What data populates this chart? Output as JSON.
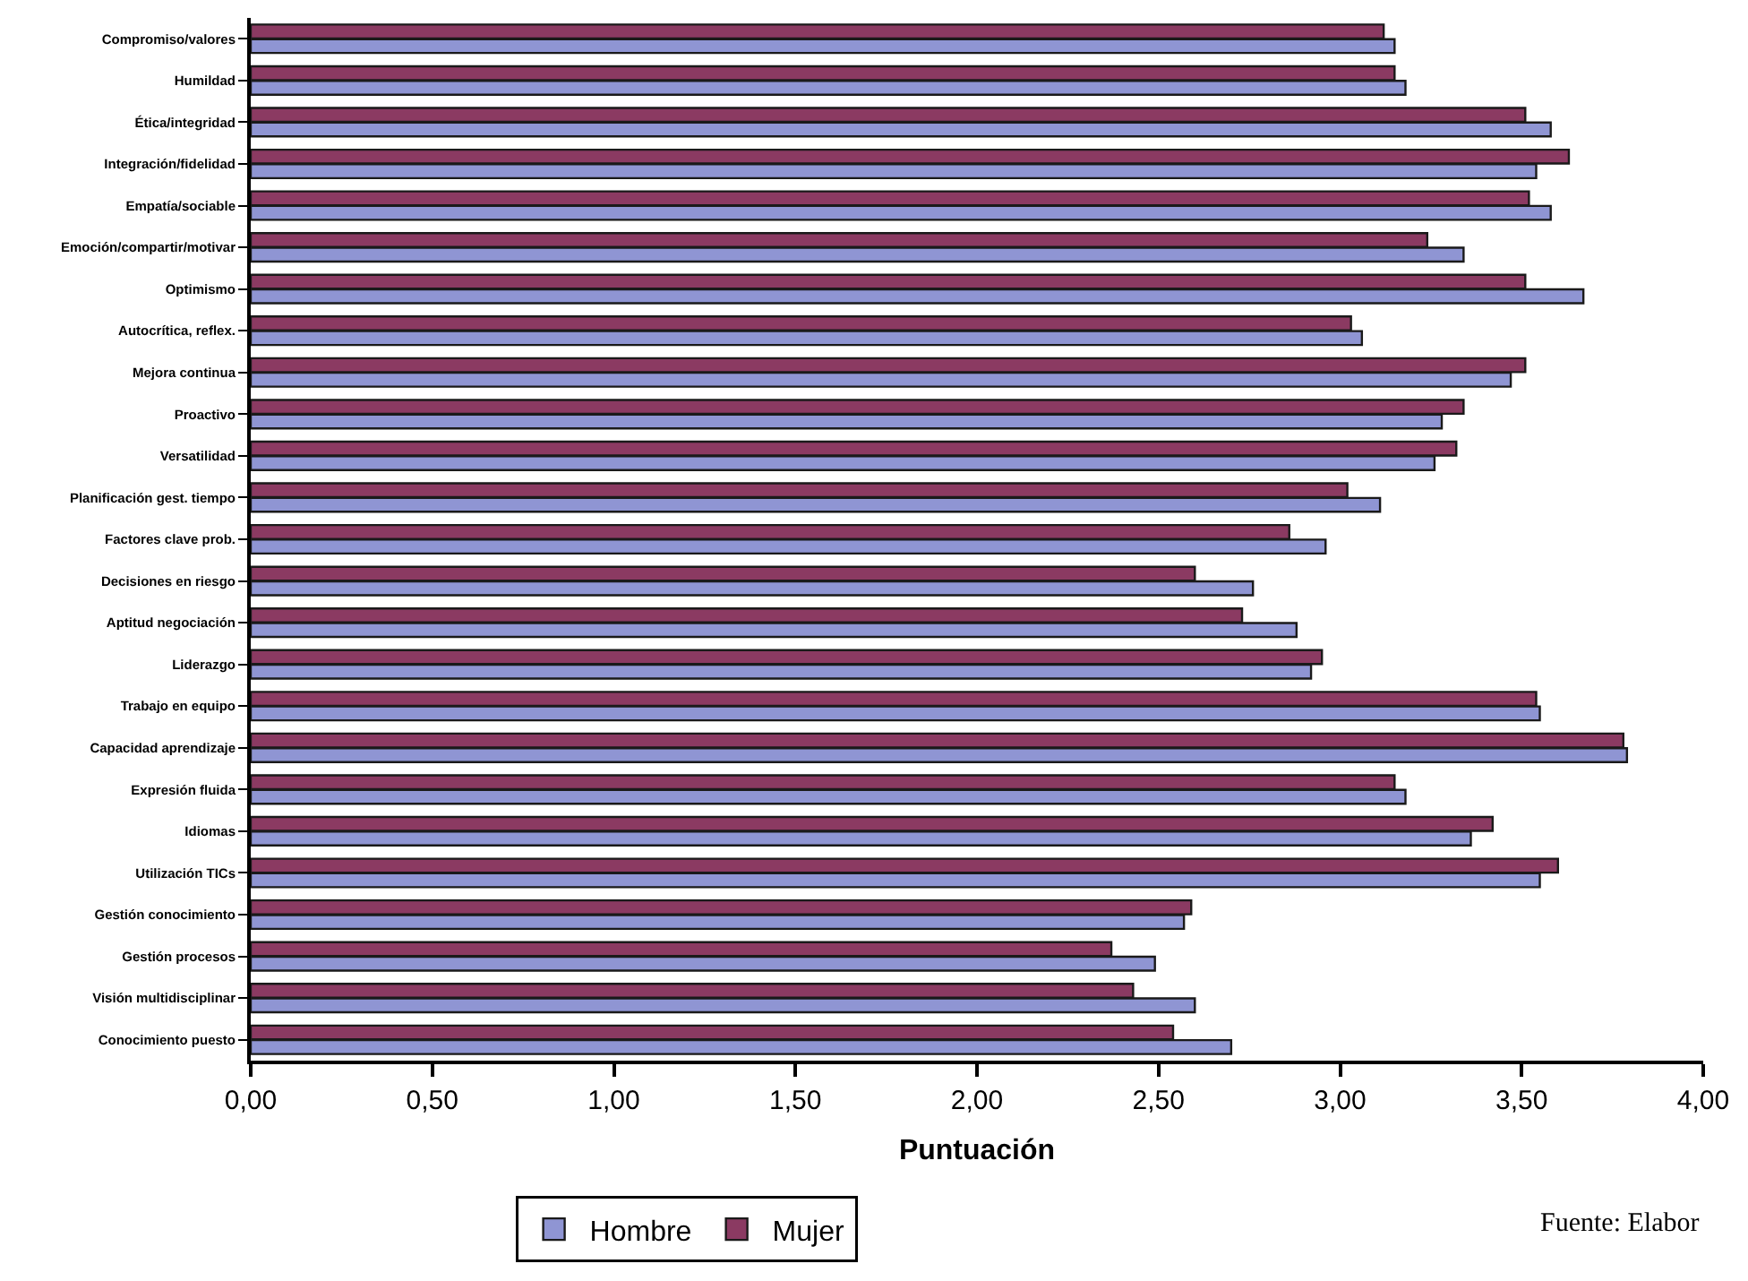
{
  "chart_data": {
    "type": "bar",
    "orientation": "horizontal",
    "xlabel": "Puntuación",
    "categories": [
      "Compromiso/valores",
      "Humildad",
      "Ética/integridad",
      "Integración/fidelidad",
      "Empatía/sociable",
      "Emoción/compartir/motivar",
      "Optimismo",
      "Autocrítica, reflex.",
      "Mejora continua",
      "Proactivo",
      "Versatilidad",
      "Planificación gest. tiempo",
      "Factores clave prob.",
      "Decisiones en riesgo",
      "Aptitud negociación",
      "Liderazgo",
      "Trabajo en equipo",
      "Capacidad aprendizaje",
      "Expresión fluida",
      "Idiomas",
      "Utilización TICs",
      "Gestión conocimiento",
      "Gestión procesos",
      "Visión multidisciplinar",
      "Conocimiento puesto"
    ],
    "series": [
      {
        "name": "Hombre",
        "color": "#8f95d3",
        "values": [
          3.15,
          3.18,
          3.58,
          3.54,
          3.58,
          3.34,
          3.67,
          3.06,
          3.47,
          3.28,
          3.26,
          3.11,
          2.96,
          2.76,
          2.88,
          2.92,
          3.55,
          3.79,
          3.18,
          3.36,
          3.55,
          2.57,
          2.49,
          2.6,
          2.7
        ]
      },
      {
        "name": "Mujer",
        "color": "#8b3a62",
        "values": [
          3.12,
          3.15,
          3.51,
          3.63,
          3.52,
          3.24,
          3.51,
          3.03,
          3.51,
          3.34,
          3.32,
          3.02,
          2.86,
          2.6,
          2.73,
          2.95,
          3.54,
          3.78,
          3.15,
          3.42,
          3.6,
          2.59,
          2.37,
          2.43,
          2.54
        ]
      }
    ],
    "xlim": [
      0,
      4
    ],
    "xticks": [
      {
        "value": 0,
        "label": "0,00"
      },
      {
        "value": 0.5,
        "label": "0,50"
      },
      {
        "value": 1,
        "label": "1,00"
      },
      {
        "value": 1.5,
        "label": "1,50"
      },
      {
        "value": 2,
        "label": "2,00"
      },
      {
        "value": 2.5,
        "label": "2,50"
      },
      {
        "value": 3,
        "label": "3,00"
      },
      {
        "value": 3.5,
        "label": "3,50"
      },
      {
        "value": 4,
        "label": "4,00"
      }
    ],
    "grid": false,
    "legend": "bottom",
    "annotations": [
      "Fuente: Elabor"
    ]
  }
}
